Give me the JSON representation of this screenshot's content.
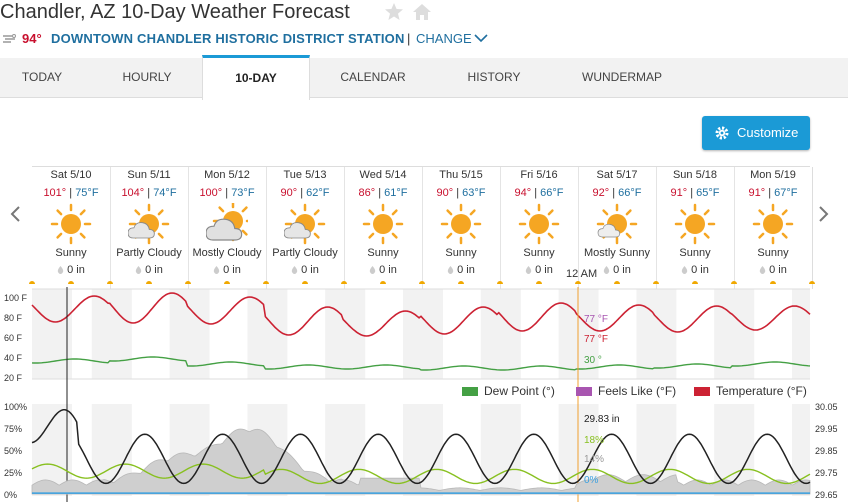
{
  "header": {
    "title": "Chandler, AZ 10-Day Weather Forecast",
    "current_temp": "94°",
    "station": "DOWNTOWN CHANDLER HISTORIC DISTRICT STATION",
    "separator": "|",
    "change_label": "CHANGE"
  },
  "tabs": [
    {
      "label": "TODAY"
    },
    {
      "label": "HOURLY"
    },
    {
      "label": "10-DAY"
    },
    {
      "label": "CALENDAR"
    },
    {
      "label": "HISTORY"
    },
    {
      "label": "WUNDERMAP"
    }
  ],
  "active_tab": "10-DAY",
  "customize": {
    "label": "Customize"
  },
  "days": [
    {
      "date": "Sat 5/10",
      "high": "101°",
      "low": "75°F",
      "condition": "Sunny",
      "icon": "sunny",
      "precip": "0 in"
    },
    {
      "date": "Sun 5/11",
      "high": "104°",
      "low": "74°F",
      "condition": "Partly Cloudy",
      "icon": "partly-cloudy",
      "precip": "0 in"
    },
    {
      "date": "Mon 5/12",
      "high": "100°",
      "low": "73°F",
      "condition": "Mostly Cloudy",
      "icon": "mostly-cloudy",
      "precip": "0 in"
    },
    {
      "date": "Tue 5/13",
      "high": "90°",
      "low": "62°F",
      "condition": "Partly Cloudy",
      "icon": "partly-cloudy",
      "precip": "0 in"
    },
    {
      "date": "Wed 5/14",
      "high": "86°",
      "low": "61°F",
      "condition": "Sunny",
      "icon": "sunny",
      "precip": "0 in"
    },
    {
      "date": "Thu 5/15",
      "high": "90°",
      "low": "63°F",
      "condition": "Sunny",
      "icon": "sunny",
      "precip": "0 in"
    },
    {
      "date": "Fri 5/16",
      "high": "94°",
      "low": "66°F",
      "condition": "Sunny",
      "icon": "sunny",
      "precip": "0 in"
    },
    {
      "date": "Sat 5/17",
      "high": "92°",
      "low": "66°F",
      "condition": "Mostly Sunny",
      "icon": "mostly-sunny",
      "precip": "0 in"
    },
    {
      "date": "Sun 5/18",
      "high": "91°",
      "low": "65°F",
      "condition": "Sunny",
      "icon": "sunny",
      "precip": "0 in"
    },
    {
      "date": "Mon 5/19",
      "high": "91°",
      "low": "67°F",
      "condition": "Sunny",
      "icon": "sunny",
      "precip": "0 in"
    }
  ],
  "time_marker": "12 AM",
  "colors": {
    "accent": "#1b9ad6",
    "temperature": "#cc2233",
    "dew_point": "#44a044",
    "feels_like": "#a855b0",
    "high": "#c8102e",
    "low": "#1f6f9f"
  },
  "chart_data": [
    {
      "type": "line",
      "y_ticks": [
        "100 F",
        "80 F",
        "60 F",
        "40 F",
        "20 F"
      ],
      "ylim": [
        20,
        100
      ],
      "series": [
        {
          "name": "Temperature (°F)",
          "daily_high": [
            101,
            104,
            100,
            90,
            86,
            90,
            94,
            92,
            91,
            91
          ],
          "daily_low": [
            75,
            74,
            73,
            62,
            61,
            63,
            66,
            66,
            65,
            67
          ]
        },
        {
          "name": "Dew Point (°)",
          "daily": [
            36,
            38,
            33,
            30,
            30,
            29,
            29,
            30,
            31,
            33
          ]
        },
        {
          "name": "Feels Like (°F)"
        }
      ],
      "hover_readouts": {
        "feels_like": "77 °F",
        "temperature": "77 °F",
        "dew_point": "30 °"
      },
      "legend": "bottom-right",
      "legend_labels": [
        "Dew Point (°)",
        "Feels Like (°F)",
        "Temperature (°F)"
      ]
    },
    {
      "type": "line",
      "y_ticks_left": [
        "100%",
        "75%",
        "50%",
        "25%",
        "0%"
      ],
      "y_ticks_right": [
        "30.05",
        "29.95",
        "29.85",
        "29.75",
        "29.65"
      ],
      "hover_readouts": {
        "pressure": "29.83 in",
        "humidity": "18%",
        "cloud_cover": "14%",
        "precip_chance": "0%"
      }
    }
  ]
}
